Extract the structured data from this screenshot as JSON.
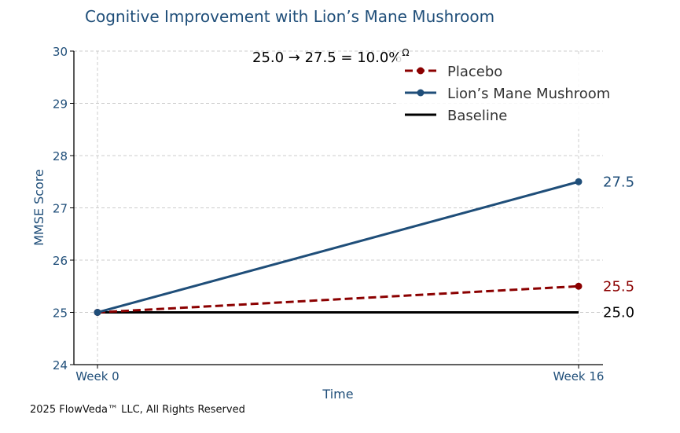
{
  "chart_data": {
    "type": "line",
    "title": "Cognitive Improvement with Lion’s Mane Mushroom",
    "xlabel": "Time",
    "ylabel": "MMSE Score",
    "categories": [
      "Week 0",
      "Week 16"
    ],
    "ylim": [
      24,
      30
    ],
    "yticks": [
      "24",
      "25",
      "26",
      "27",
      "28",
      "29",
      "30"
    ],
    "grid": true,
    "legend_position": "top-right",
    "annotation": {
      "text": "25.0 → 27.5 = 10.0%",
      "superscript": "Ω"
    },
    "series": [
      {
        "name": "Placebo",
        "values": [
          25.0,
          25.5
        ],
        "end_label": "25.5",
        "color": "#8b0000",
        "style": "dashed",
        "markers": true
      },
      {
        "name": "Lion’s Mane Mushroom",
        "values": [
          25.0,
          27.5
        ],
        "end_label": "27.5",
        "color": "#1f4e79",
        "style": "solid",
        "markers": true
      },
      {
        "name": "Baseline",
        "values": [
          25.0,
          25.0
        ],
        "end_label": "25.0",
        "color": "#000000",
        "style": "solid",
        "markers": false
      }
    ],
    "colors": {
      "title": "#1f4e79",
      "axis_text": "#1f4e79",
      "grid": "#cccccc"
    }
  },
  "footer": "2025 FlowVeda™ LLC, All Rights Reserved"
}
